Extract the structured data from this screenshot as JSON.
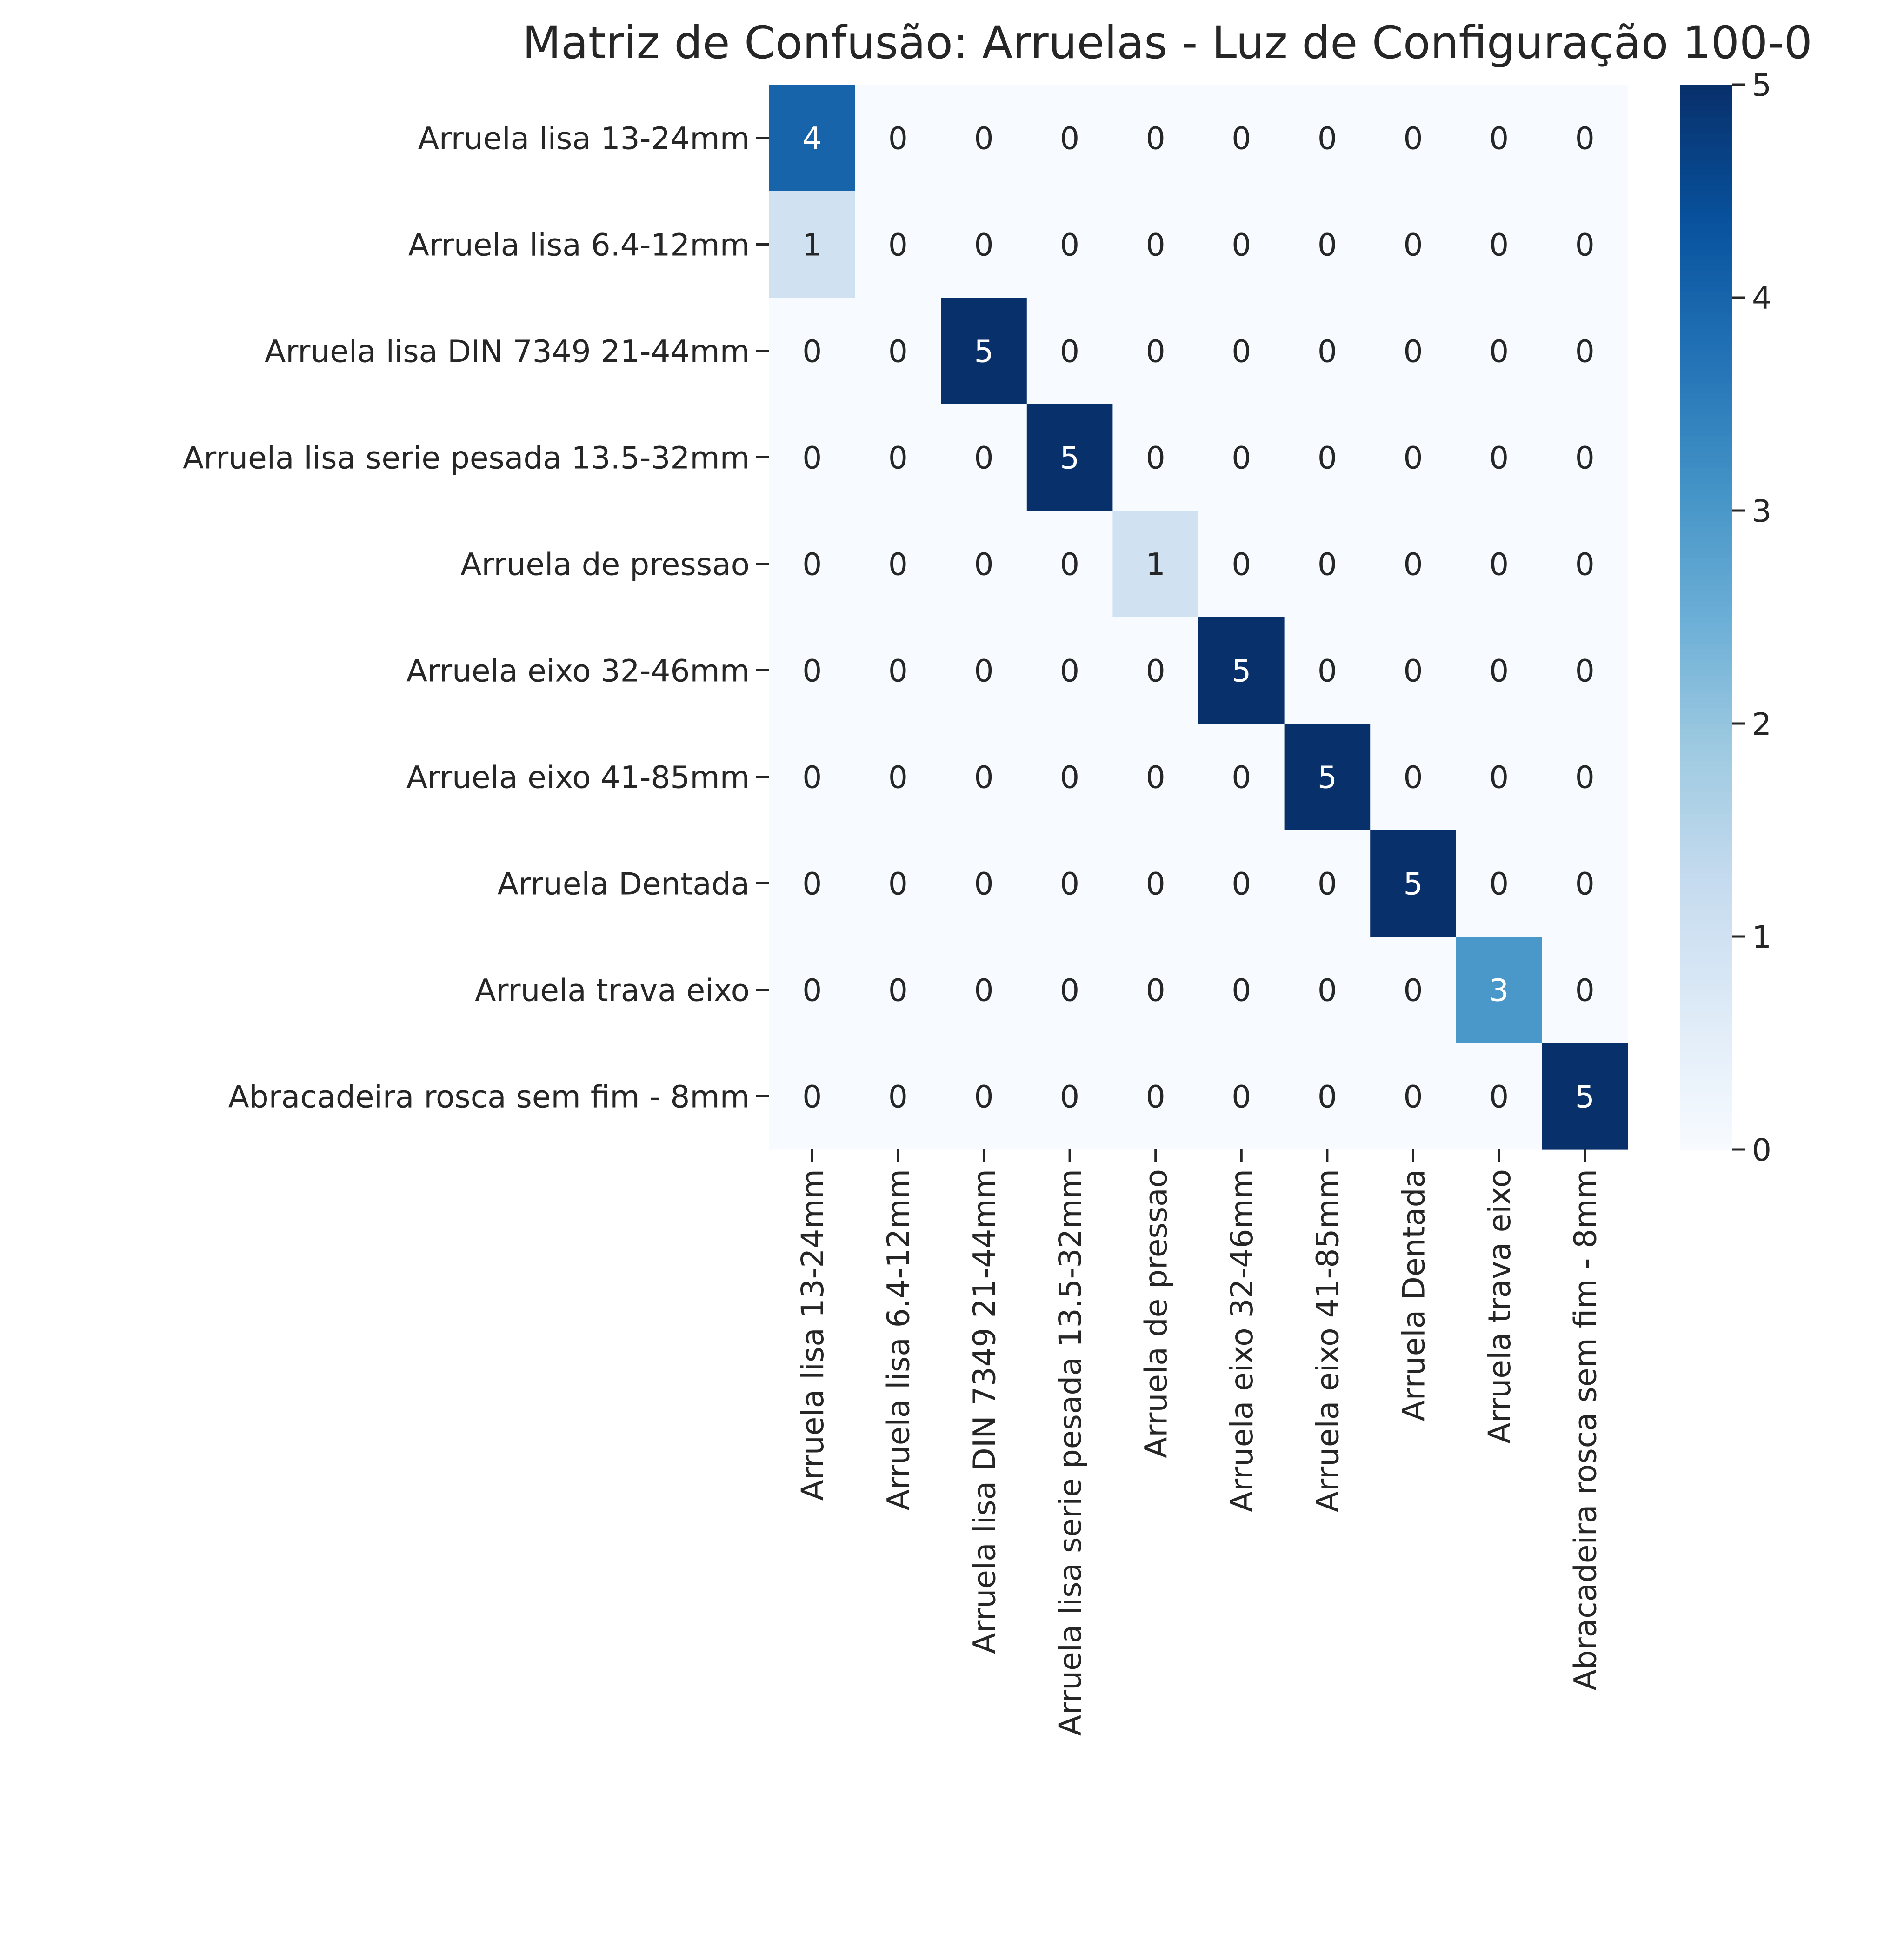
{
  "chart_data": {
    "type": "heatmap",
    "title": "Matriz de Confusão: Arruelas - Luz de Configuração 100-0",
    "xlabel": "",
    "ylabel": "",
    "row_labels": [
      "Arruela lisa 13-24mm",
      "Arruela lisa 6.4-12mm",
      "Arruela lisa DIN 7349 21-44mm",
      "Arruela lisa serie pesada 13.5-32mm",
      "Arruela de pressao",
      "Arruela eixo 32-46mm",
      "Arruela eixo 41-85mm",
      "Arruela Dentada",
      "Arruela trava eixo",
      "Abracadeira rosca sem fim - 8mm"
    ],
    "col_labels": [
      "Arruela lisa 13-24mm",
      "Arruela lisa 6.4-12mm",
      "Arruela lisa DIN 7349 21-44mm",
      "Arruela lisa serie pesada 13.5-32mm",
      "Arruela de pressao",
      "Arruela eixo 32-46mm",
      "Arruela eixo 41-85mm",
      "Arruela Dentada",
      "Arruela trava eixo",
      "Abracadeira rosca sem fim - 8mm"
    ],
    "values": [
      [
        4,
        0,
        0,
        0,
        0,
        0,
        0,
        0,
        0,
        0
      ],
      [
        1,
        0,
        0,
        0,
        0,
        0,
        0,
        0,
        0,
        0
      ],
      [
        0,
        0,
        5,
        0,
        0,
        0,
        0,
        0,
        0,
        0
      ],
      [
        0,
        0,
        0,
        5,
        0,
        0,
        0,
        0,
        0,
        0
      ],
      [
        0,
        0,
        0,
        0,
        1,
        0,
        0,
        0,
        0,
        0
      ],
      [
        0,
        0,
        0,
        0,
        0,
        5,
        0,
        0,
        0,
        0
      ],
      [
        0,
        0,
        0,
        0,
        0,
        0,
        5,
        0,
        0,
        0
      ],
      [
        0,
        0,
        0,
        0,
        0,
        0,
        0,
        5,
        0,
        0
      ],
      [
        0,
        0,
        0,
        0,
        0,
        0,
        0,
        0,
        3,
        0
      ],
      [
        0,
        0,
        0,
        0,
        0,
        0,
        0,
        0,
        0,
        5
      ]
    ],
    "colorbar": {
      "range": [
        0,
        5
      ],
      "ticks": [
        0,
        1,
        2,
        3,
        4,
        5
      ],
      "colormap": "Blues",
      "color_low": "#f7fbff",
      "color_high": "#08306b"
    },
    "grid": false,
    "legend": "colorbar-right"
  }
}
